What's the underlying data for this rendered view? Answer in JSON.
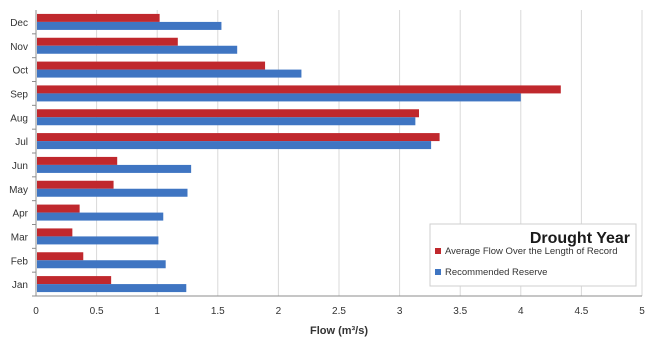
{
  "chart_data": {
    "type": "bar",
    "orientation": "horizontal",
    "categories": [
      "Jan",
      "Feb",
      "Mar",
      "Apr",
      "May",
      "Jun",
      "Jul",
      "Aug",
      "Sep",
      "Oct",
      "Nov",
      "Dec"
    ],
    "series": [
      {
        "name": "Average Flow Over the Length of Record",
        "color": "#c0282d",
        "values": [
          0.62,
          0.39,
          0.3,
          0.36,
          0.64,
          0.67,
          3.33,
          3.16,
          4.33,
          1.89,
          1.17,
          1.02
        ]
      },
      {
        "name": "Recommended Reserve",
        "color": "#3f75c2",
        "values": [
          1.24,
          1.07,
          1.01,
          1.05,
          1.25,
          1.28,
          3.26,
          3.13,
          4.0,
          2.19,
          1.66,
          1.53
        ]
      }
    ],
    "xlabel": "Flow (m³/s)",
    "ylabel": "",
    "xlim": [
      0,
      5
    ],
    "xticks": [
      "0",
      "0.5",
      "1",
      "1.5",
      "2",
      "2.5",
      "3",
      "3.5",
      "4",
      "4.5",
      "5"
    ],
    "grid": true,
    "legend": {
      "title": "Drought Year",
      "position": "bottom-right"
    }
  }
}
